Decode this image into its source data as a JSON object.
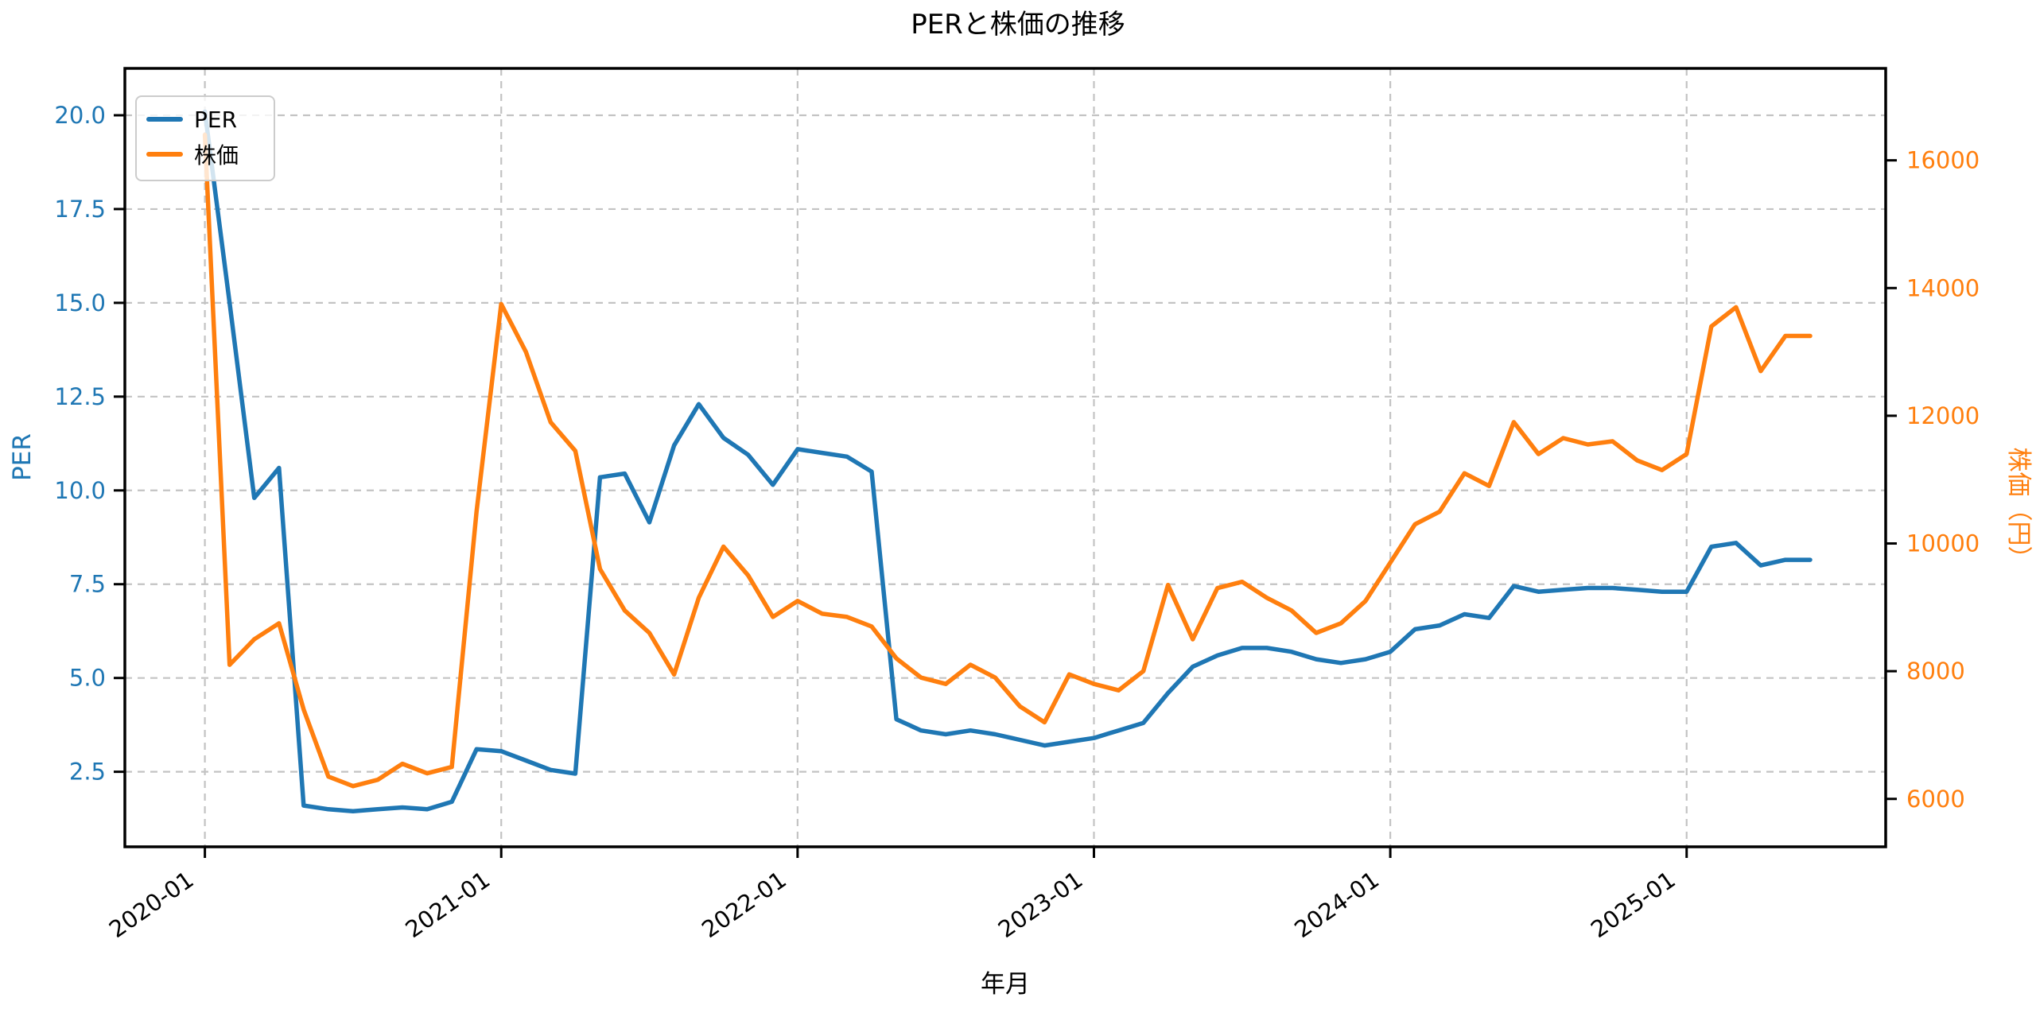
{
  "page": {
    "title": "PERと株価の推移"
  },
  "chart_data": {
    "type": "line",
    "title": "PERと株価の推移",
    "xlabel": "年月",
    "ylabel_left": "PER",
    "ylabel_right": "株価（円）",
    "legend_position": "upper-left",
    "grid": {
      "on": true,
      "style": "dashed",
      "color": "#c3c3c3",
      "follows": "left-axis-and-x-ticks"
    },
    "x": [
      "2020-01",
      "2020-02",
      "2020-03",
      "2020-04",
      "2020-05",
      "2020-06",
      "2020-07",
      "2020-08",
      "2020-09",
      "2020-10",
      "2020-11",
      "2020-12",
      "2021-01",
      "2021-02",
      "2021-03",
      "2021-04",
      "2021-05",
      "2021-06",
      "2021-07",
      "2021-08",
      "2021-09",
      "2021-10",
      "2021-11",
      "2021-12",
      "2022-01",
      "2022-02",
      "2022-03",
      "2022-04",
      "2022-05",
      "2022-06",
      "2022-07",
      "2022-08",
      "2022-09",
      "2022-10",
      "2022-11",
      "2022-12",
      "2023-01",
      "2023-02",
      "2023-03",
      "2023-04",
      "2023-05",
      "2023-06",
      "2023-07",
      "2023-08",
      "2023-09",
      "2023-10",
      "2023-11",
      "2023-12",
      "2024-01",
      "2024-02",
      "2024-03",
      "2024-04",
      "2024-05",
      "2024-06",
      "2024-07",
      "2024-08",
      "2024-09",
      "2024-10",
      "2024-11",
      "2024-12",
      "2025-01",
      "2025-02",
      "2025-03",
      "2025-04",
      "2025-05",
      "2025-06"
    ],
    "x_tick_labels": [
      "2020-01",
      "2021-01",
      "2022-01",
      "2023-01",
      "2024-01",
      "2025-01"
    ],
    "x_tick_positions": [
      0,
      12,
      24,
      36,
      48,
      60
    ],
    "xlim_months": [
      -3.24,
      68.06
    ],
    "axes": {
      "left": {
        "label": "PER",
        "color": "#1f77b4",
        "ticks": [
          2.5,
          5.0,
          7.5,
          10.0,
          12.5,
          15.0,
          17.5,
          20.0
        ],
        "lim": [
          0.5,
          21.25
        ]
      },
      "right": {
        "label": "株価（円）",
        "color": "#ff7f0e",
        "ticks": [
          6000,
          8000,
          10000,
          12000,
          14000,
          16000
        ],
        "lim": [
          5250,
          17440
        ]
      }
    },
    "series": [
      {
        "name": "PER",
        "axis": "left",
        "color": "#1f77b4",
        "values": [
          20.1,
          15.0,
          9.8,
          10.6,
          1.6,
          1.5,
          1.45,
          1.5,
          1.55,
          1.5,
          1.7,
          3.1,
          3.05,
          2.8,
          2.55,
          2.45,
          10.35,
          10.45,
          9.15,
          11.2,
          12.3,
          11.4,
          10.95,
          10.15,
          11.1,
          11.0,
          10.9,
          10.5,
          3.9,
          3.6,
          3.5,
          3.6,
          3.5,
          3.35,
          3.2,
          3.3,
          3.4,
          3.6,
          3.8,
          4.6,
          5.3,
          5.6,
          5.8,
          5.8,
          5.7,
          5.5,
          5.4,
          5.5,
          5.7,
          6.3,
          6.4,
          6.7,
          6.6,
          7.45,
          7.3,
          7.35,
          7.4,
          7.4,
          7.35,
          7.3,
          7.3,
          8.5,
          8.6,
          8.0,
          8.15,
          8.15
        ]
      },
      {
        "name": "株価",
        "axis": "right",
        "color": "#ff7f0e",
        "values": [
          16400,
          8100,
          8500,
          8750,
          7400,
          6350,
          6200,
          6300,
          6550,
          6400,
          6500,
          10500,
          13750,
          13000,
          11900,
          11450,
          9600,
          8950,
          8600,
          7950,
          9150,
          9950,
          9500,
          8850,
          9100,
          8900,
          8850,
          8700,
          8200,
          7900,
          7800,
          8100,
          7900,
          7450,
          7200,
          7950,
          7800,
          7700,
          8000,
          9350,
          8500,
          9300,
          9400,
          9150,
          8950,
          8600,
          8750,
          9100,
          9700,
          10300,
          10500,
          11100,
          10900,
          11900,
          11400,
          11650,
          11550,
          11600,
          11300,
          11150,
          11400,
          13400,
          13700,
          12700,
          13250,
          13250
        ]
      }
    ]
  }
}
